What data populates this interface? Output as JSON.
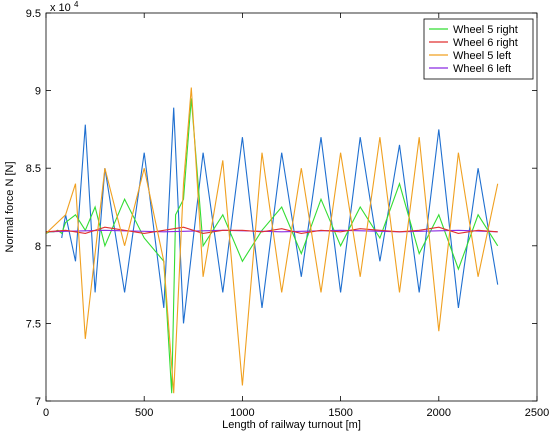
{
  "chart_data": {
    "type": "line",
    "title": "",
    "xlabel": "Length of railway turnout [m]",
    "ylabel": "Normal force N [N]",
    "exponent_label": "x 10",
    "exponent_power": "4",
    "xlim": [
      0,
      2500
    ],
    "ylim": [
      7,
      9.5
    ],
    "xticks": [
      0,
      500,
      1000,
      1500,
      2000,
      2500
    ],
    "yticks": [
      7,
      7.5,
      8,
      8.5,
      9,
      9.5
    ],
    "x_tick_labels": [
      "0",
      "500",
      "1000",
      "1500",
      "2000",
      "2500"
    ],
    "y_tick_labels": [
      "7",
      "7.5",
      "8",
      "8.5",
      "9",
      "9.5"
    ],
    "grid": false,
    "legend_position": "top-right",
    "series": [
      {
        "name": "Wheel 5 right",
        "color": "#33dd33",
        "x": [
          0,
          20,
          40,
          60,
          80,
          100,
          150,
          200,
          250,
          300,
          400,
          500,
          600,
          640,
          660,
          700,
          740,
          800,
          900,
          1000,
          1100,
          1200,
          1300,
          1400,
          1500,
          1600,
          1700,
          1800,
          1900,
          2000,
          2100,
          2200,
          2300
        ],
        "values": [
          8.08,
          8.09,
          8.09,
          8.1,
          8.08,
          8.15,
          8.2,
          8.1,
          8.25,
          8.0,
          8.3,
          8.05,
          7.9,
          7.05,
          8.2,
          8.3,
          8.95,
          8.0,
          8.2,
          7.9,
          8.1,
          8.25,
          7.95,
          8.3,
          8.0,
          8.25,
          8.05,
          8.4,
          7.95,
          8.2,
          7.85,
          8.2,
          8.0
        ]
      },
      {
        "name": "Wheel 6 right",
        "color": "#e03030",
        "x": [
          0,
          100,
          200,
          300,
          400,
          500,
          600,
          700,
          800,
          900,
          1000,
          1100,
          1200,
          1300,
          1400,
          1500,
          1600,
          1700,
          1800,
          1900,
          2000,
          2100,
          2200,
          2300
        ],
        "values": [
          8.09,
          8.1,
          8.08,
          8.12,
          8.1,
          8.08,
          8.1,
          8.12,
          8.08,
          8.1,
          8.1,
          8.09,
          8.11,
          8.08,
          8.1,
          8.09,
          8.11,
          8.1,
          8.09,
          8.1,
          8.12,
          8.08,
          8.1,
          8.09
        ]
      },
      {
        "name": "Wheel 5 left",
        "color": "#f0a020",
        "x": [
          0,
          100,
          150,
          200,
          300,
          400,
          500,
          600,
          650,
          700,
          740,
          800,
          900,
          1000,
          1100,
          1200,
          1300,
          1400,
          1500,
          1600,
          1700,
          1800,
          1900,
          2000,
          2100,
          2200,
          2300
        ],
        "values": [
          8.08,
          8.2,
          8.4,
          7.4,
          8.5,
          8.0,
          8.5,
          7.9,
          7.05,
          8.4,
          9.02,
          7.8,
          8.55,
          7.1,
          8.6,
          7.7,
          8.5,
          7.7,
          8.6,
          7.8,
          8.7,
          7.7,
          8.7,
          7.45,
          8.6,
          7.8,
          8.4
        ]
      },
      {
        "name": "Wheel 6 left",
        "color": "#8a2be2",
        "x": [
          0,
          300,
          600,
          900,
          1200,
          1500,
          1800,
          2100,
          2300
        ],
        "values": [
          8.09,
          8.1,
          8.09,
          8.1,
          8.09,
          8.1,
          8.09,
          8.1,
          8.09
        ]
      },
      {
        "name": "",
        "color": "#1f6fd0",
        "x": [
          80,
          100,
          150,
          200,
          250,
          300,
          400,
          500,
          600,
          650,
          700,
          800,
          900,
          1000,
          1100,
          1200,
          1300,
          1400,
          1500,
          1600,
          1700,
          1800,
          1900,
          2000,
          2100,
          2200,
          2300
        ],
        "values": [
          8.05,
          8.2,
          7.9,
          8.78,
          7.7,
          8.5,
          7.7,
          8.6,
          7.6,
          8.89,
          7.5,
          8.6,
          7.7,
          8.7,
          7.6,
          8.6,
          7.8,
          8.7,
          7.7,
          8.7,
          7.9,
          8.65,
          7.7,
          8.75,
          7.6,
          8.5,
          7.75
        ]
      }
    ]
  }
}
